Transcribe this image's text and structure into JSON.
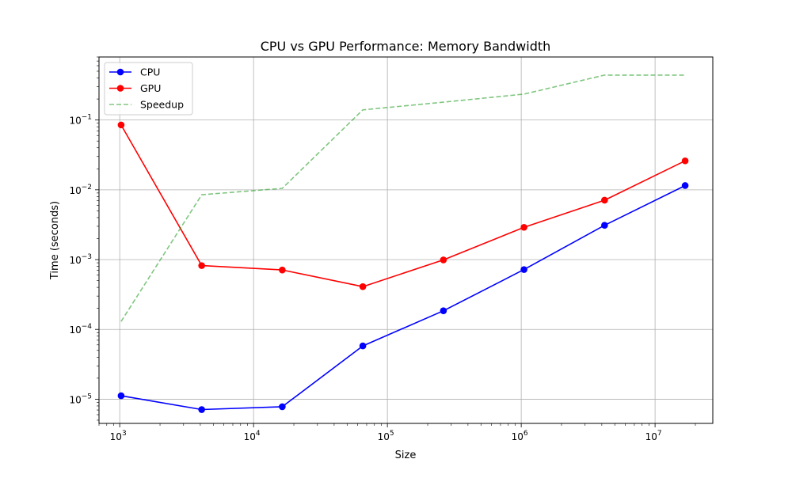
{
  "chart_data": {
    "type": "line",
    "title": "CPU vs GPU Performance: Memory Bandwidth",
    "xlabel": "Size",
    "ylabel": "Time (seconds)",
    "xscale": "log",
    "yscale": "log",
    "xlim": [
      700,
      27000000
    ],
    "ylim": [
      4.5e-06,
      0.8
    ],
    "grid": true,
    "legend_position": "top-left",
    "x_ticks": [
      {
        "value": 1000,
        "base": "10",
        "exp": "3"
      },
      {
        "value": 10000,
        "base": "10",
        "exp": "4"
      },
      {
        "value": 100000,
        "base": "10",
        "exp": "5"
      },
      {
        "value": 1000000,
        "base": "10",
        "exp": "6"
      },
      {
        "value": 10000000,
        "base": "10",
        "exp": "7"
      }
    ],
    "y_ticks": [
      {
        "value": 1e-05,
        "base": "10",
        "exp": "−5"
      },
      {
        "value": 0.0001,
        "base": "10",
        "exp": "−4"
      },
      {
        "value": 0.001,
        "base": "10",
        "exp": "−3"
      },
      {
        "value": 0.01,
        "base": "10",
        "exp": "−2"
      },
      {
        "value": 0.1,
        "base": "10",
        "exp": "−1"
      }
    ],
    "x": [
      1024,
      4096,
      16384,
      65536,
      262144,
      1048576,
      4194304,
      16777216
    ],
    "series": [
      {
        "name": "CPU",
        "color": "#0000ff",
        "style": "solid",
        "marker": "circle",
        "values": [
          1.12e-05,
          7.1e-06,
          7.8e-06,
          5.8e-05,
          0.000185,
          0.00072,
          0.0031,
          0.0115
        ]
      },
      {
        "name": "GPU",
        "color": "#ff0000",
        "style": "solid",
        "marker": "circle",
        "values": [
          0.085,
          0.00082,
          0.00071,
          0.00041,
          0.00099,
          0.0029,
          0.0071,
          0.026
        ]
      },
      {
        "name": "Speedup",
        "color": "#2ca02c",
        "style": "dashed",
        "marker": "none",
        "alpha": 0.6,
        "values": [
          0.00013,
          0.0085,
          0.0105,
          0.14,
          0.18,
          0.235,
          0.44,
          0.44
        ]
      }
    ]
  }
}
